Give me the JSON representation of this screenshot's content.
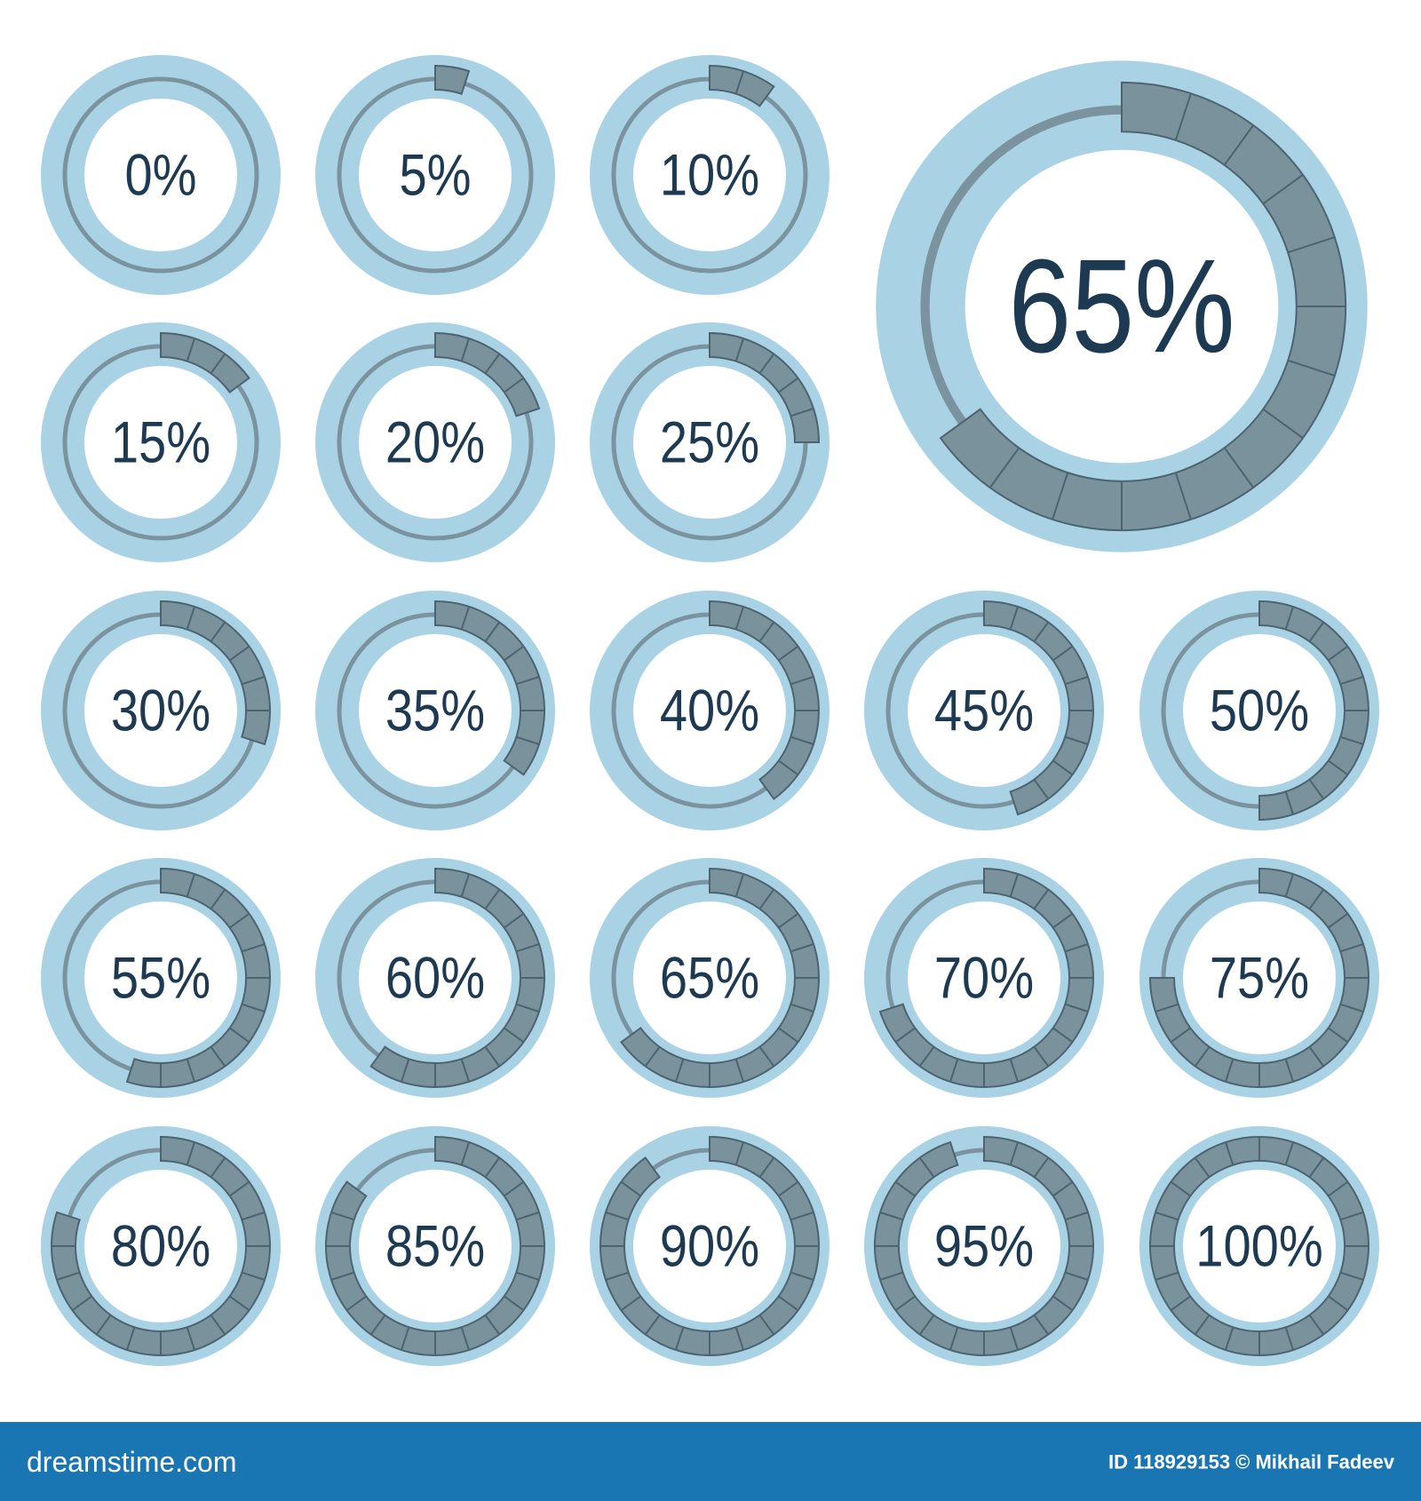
{
  "indicators": [
    {
      "label": "0%",
      "value": 0
    },
    {
      "label": "5%",
      "value": 5
    },
    {
      "label": "10%",
      "value": 10
    },
    {
      "label": "15%",
      "value": 15
    },
    {
      "label": "20%",
      "value": 20
    },
    {
      "label": "25%",
      "value": 25
    },
    {
      "label": "30%",
      "value": 30
    },
    {
      "label": "35%",
      "value": 35
    },
    {
      "label": "40%",
      "value": 40
    },
    {
      "label": "45%",
      "value": 45
    },
    {
      "label": "50%",
      "value": 50
    },
    {
      "label": "55%",
      "value": 55
    },
    {
      "label": "60%",
      "value": 60
    },
    {
      "label": "65%",
      "value": 65
    },
    {
      "label": "70%",
      "value": 70
    },
    {
      "label": "75%",
      "value": 75
    },
    {
      "label": "80%",
      "value": 80
    },
    {
      "label": "85%",
      "value": 85
    },
    {
      "label": "90%",
      "value": 90
    },
    {
      "label": "95%",
      "value": 95
    },
    {
      "label": "100%",
      "value": 100
    }
  ],
  "featured": {
    "label": "65%",
    "value": 65
  },
  "footer": {
    "site": "dreamstime.com",
    "credit": "ID 118929153 © Mikhail Fadeev"
  }
}
